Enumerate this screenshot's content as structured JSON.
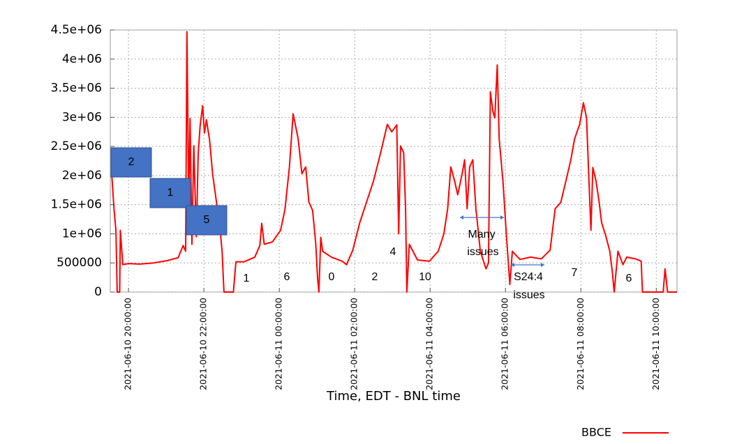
{
  "chart_data": {
    "type": "line",
    "x_label": "Time, EDT - BNL time",
    "xlim": [
      "2021-06-10 19:31:00",
      "2021-06-11 10:33:00"
    ],
    "xticks": [
      "2021-06-10 20:00:00",
      "2021-06-10 22:00:00",
      "2021-06-11 00:00:00",
      "2021-06-11 02:00:00",
      "2021-06-11 04:00:00",
      "2021-06-11 06:00:00",
      "2021-06-11 08:00:00",
      "2021-06-11 10:00:00"
    ],
    "ylim": [
      0,
      4500000
    ],
    "yticks": [
      0,
      500000,
      {
        "value": 1000000,
        "label": "1e+06"
      },
      {
        "value": 1500000,
        "label": "1.5e+06"
      },
      {
        "value": 2000000,
        "label": "2e+06"
      },
      {
        "value": 2500000,
        "label": "2.5e+06"
      },
      {
        "value": 3000000,
        "label": "3e+06"
      },
      {
        "value": 3500000,
        "label": "3.5e+06"
      },
      {
        "value": 4000000,
        "label": "4e+06"
      },
      {
        "value": 4500000,
        "label": "4.5e+06"
      }
    ],
    "grid": true,
    "legend": "bottom-right",
    "x": [
      "2021-06-10 19:33:00",
      "2021-06-10 19:37:00",
      "2021-06-10 19:40:00",
      "2021-06-10 19:42:00",
      "2021-06-10 19:46:00",
      "2021-06-10 19:47:00",
      "2021-06-10 19:51:00",
      "2021-06-10 20:00:00",
      "2021-06-10 20:18:00",
      "2021-06-10 20:40:00",
      "2021-06-10 21:02:00",
      "2021-06-10 21:19:00",
      "2021-06-10 21:27:00",
      "2021-06-10 21:31:00",
      "2021-06-10 21:33:00",
      "2021-06-10 21:36:00",
      "2021-06-10 21:38:00",
      "2021-06-10 21:41:00",
      "2021-06-10 21:44:00",
      "2021-06-10 21:48:00",
      "2021-06-10 21:51:00",
      "2021-06-10 21:54:00",
      "2021-06-10 21:58:00",
      "2021-06-10 22:01:00",
      "2021-06-10 22:04:00",
      "2021-06-10 22:09:00",
      "2021-06-10 22:14:00",
      "2021-06-10 22:20:00",
      "2021-06-10 22:26:00",
      "2021-06-10 22:29:00",
      "2021-06-10 22:32:00",
      "2021-06-10 22:47:00",
      "2021-06-10 22:51:00",
      "2021-06-10 23:04:00",
      "2021-06-10 23:21:00",
      "2021-06-10 23:29:00",
      "2021-06-10 23:32:00",
      "2021-06-10 23:36:00",
      "2021-06-10 23:49:00",
      "2021-06-11 00:02:00",
      "2021-06-11 00:09:00",
      "2021-06-11 00:16:00",
      "2021-06-11 00:22:00",
      "2021-06-11 00:30:00",
      "2021-06-11 00:36:00",
      "2021-06-11 00:42:00",
      "2021-06-11 00:47:00",
      "2021-06-11 00:53:00",
      "2021-06-11 00:58:00",
      "2021-06-11 01:01:00",
      "2021-06-11 01:03:00",
      "2021-06-11 01:06:00",
      "2021-06-11 01:09:00",
      "2021-06-11 01:23:00",
      "2021-06-11 01:40:00",
      "2021-06-11 01:47:00",
      "2021-06-11 01:57:00",
      "2021-06-11 02:08:00",
      "2021-06-11 02:19:00",
      "2021-06-11 02:30:00",
      "2021-06-11 02:41:00",
      "2021-06-11 02:52:00",
      "2021-06-11 02:59:00",
      "2021-06-11 03:07:00",
      "2021-06-11 03:10:00",
      "2021-06-11 03:13:00",
      "2021-06-11 03:18:00",
      "2021-06-11 03:21:00",
      "2021-06-11 03:23:00",
      "2021-06-11 03:27:00",
      "2021-06-11 03:40:00",
      "2021-06-11 03:59:00",
      "2021-06-11 04:13:00",
      "2021-06-11 04:22:00",
      "2021-06-11 04:28:00",
      "2021-06-11 04:33:00",
      "2021-06-11 04:39:00",
      "2021-06-11 04:44:00",
      "2021-06-11 04:51:00",
      "2021-06-11 04:55:00",
      "2021-06-11 04:59:00",
      "2021-06-11 05:03:00",
      "2021-06-11 05:08:00",
      "2021-06-11 05:13:00",
      "2021-06-11 05:20:00",
      "2021-06-11 05:29:00",
      "2021-06-11 05:33:00",
      "2021-06-11 05:36:00",
      "2021-06-11 05:40:00",
      "2021-06-11 05:43:00",
      "2021-06-11 05:47:00",
      "2021-06-11 05:50:00",
      "2021-06-11 05:56:00",
      "2021-06-11 06:01:00",
      "2021-06-11 06:07:00",
      "2021-06-11 06:11:00",
      "2021-06-11 06:23:00",
      "2021-06-11 06:40:00",
      "2021-06-11 06:57:00",
      "2021-06-11 07:11:00",
      "2021-06-11 07:19:00",
      "2021-06-11 07:28:00",
      "2021-06-11 07:36:00",
      "2021-06-11 07:44:00",
      "2021-06-11 07:50:00",
      "2021-06-11 07:58:00",
      "2021-06-11 08:04:00",
      "2021-06-11 08:09:00",
      "2021-06-11 08:12:00",
      "2021-06-11 08:16:00",
      "2021-06-11 08:19:00",
      "2021-06-11 08:24:00",
      "2021-06-11 08:29:00",
      "2021-06-11 08:33:00",
      "2021-06-11 08:40:00",
      "2021-06-11 08:46:00",
      "2021-06-11 08:50:00",
      "2021-06-11 08:53:00",
      "2021-06-11 08:59:00",
      "2021-06-11 09:07:00",
      "2021-06-11 09:13:00",
      "2021-06-11 09:27:00",
      "2021-06-11 09:36:00",
      "2021-06-11 09:38:00",
      "2021-06-11 10:11:00",
      "2021-06-11 10:14:00",
      "2021-06-11 10:18:00",
      "2021-06-11 10:33:00"
    ],
    "series": [
      {
        "name": "BBCE",
        "color": "#ff0000",
        "values": [
          2080000,
          1420000,
          1060000,
          0,
          0,
          1060000,
          470000,
          490000,
          480000,
          500000,
          540000,
          590000,
          800000,
          700000,
          4470000,
          1420000,
          2980000,
          820000,
          2510000,
          950000,
          2380000,
          2850000,
          3200000,
          2730000,
          2960000,
          2620000,
          2020000,
          1550000,
          1060000,
          700000,
          0,
          0,
          520000,
          520000,
          600000,
          800000,
          1180000,
          820000,
          860000,
          1060000,
          1420000,
          2140000,
          3060000,
          2630000,
          2030000,
          2150000,
          1550000,
          1400000,
          830000,
          230000,
          0,
          940000,
          700000,
          600000,
          530000,
          470000,
          720000,
          1190000,
          1550000,
          1910000,
          2380000,
          2880000,
          2750000,
          2870000,
          1000000,
          2510000,
          2390000,
          1430000,
          0,
          820000,
          550000,
          530000,
          700000,
          1000000,
          1430000,
          2150000,
          1910000,
          1670000,
          2030000,
          2270000,
          1430000,
          2150000,
          2270000,
          1430000,
          700000,
          400000,
          500000,
          3440000,
          3100000,
          2990000,
          3900000,
          2630000,
          1910000,
          1060000,
          130000,
          700000,
          560000,
          600000,
          570000,
          720000,
          1430000,
          1540000,
          1900000,
          2270000,
          2630000,
          2880000,
          3250000,
          2990000,
          2140000,
          1060000,
          2140000,
          1910000,
          1550000,
          1190000,
          950000,
          700000,
          350000,
          0,
          700000,
          470000,
          600000,
          570000,
          530000,
          0,
          0,
          400000,
          0,
          0
        ]
      }
    ],
    "annotations": [
      "2",
      "1",
      "5",
      "1",
      "6",
      "0",
      "2",
      "4",
      "10",
      "Many",
      "issues",
      "S24:4",
      "issues",
      "7",
      "6"
    ]
  }
}
